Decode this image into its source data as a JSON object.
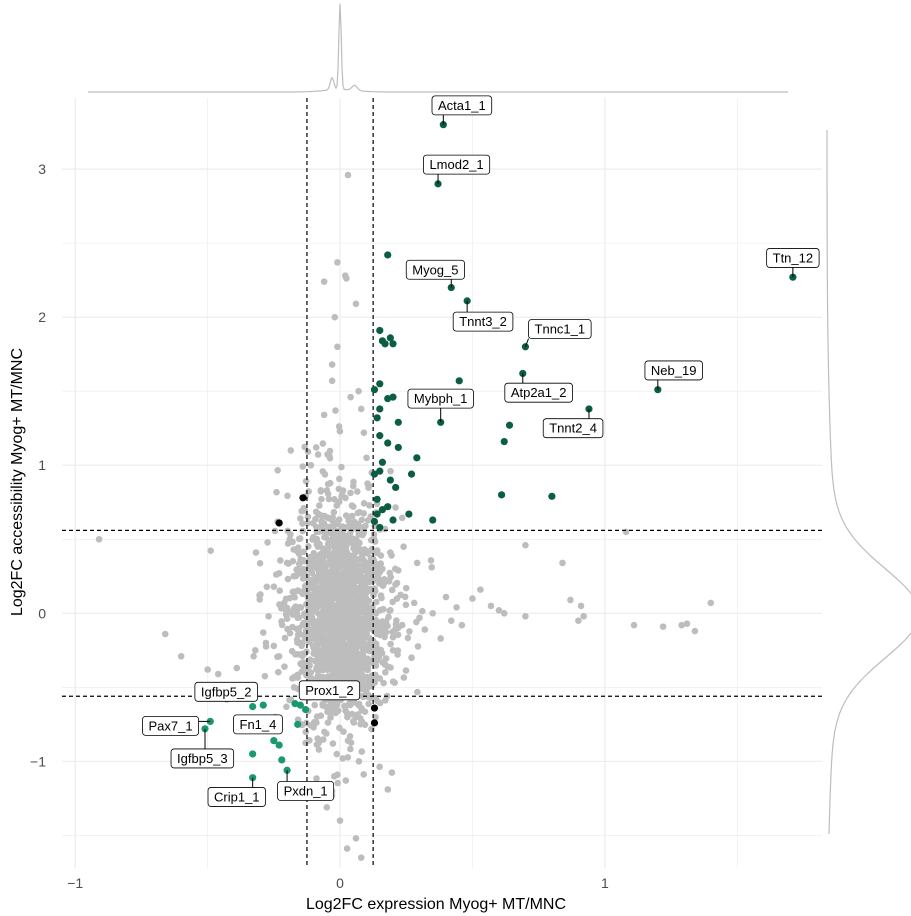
{
  "chart_data": {
    "type": "scatter",
    "title": "",
    "xlabel": "Log2FC expression Myog+ MT/MNC",
    "ylabel": "Log2FC accessibility Myog+ MT/MNC",
    "xlim": [
      -1.05,
      1.82
    ],
    "ylim": [
      -1.72,
      3.48
    ],
    "x_ticks": [
      {
        "value": -1,
        "label": "−1"
      },
      {
        "value": 0,
        "label": "0"
      },
      {
        "value": 1,
        "label": "1"
      }
    ],
    "y_ticks": [
      {
        "value": -1,
        "label": "−1"
      },
      {
        "value": 0,
        "label": "0"
      },
      {
        "value": 1,
        "label": "1"
      },
      {
        "value": 2,
        "label": "2"
      },
      {
        "value": 3,
        "label": "3"
      }
    ],
    "grid": true,
    "thresholds": {
      "x": [
        -0.125,
        0.125
      ],
      "y": [
        -0.56,
        0.56
      ]
    },
    "marginal_densities": {
      "top": "x density",
      "right": "y density"
    },
    "colors": {
      "background": "#bdbdbd",
      "up": "#0b5e42",
      "down": "#1a9870",
      "black": "#000000",
      "threshold_line": "#000000",
      "grid": "#ebebeb",
      "density": "#bdbdbd"
    },
    "background_points": [
      [
        -0.91,
        0.5
      ],
      [
        -0.66,
        -0.14
      ],
      [
        -0.6,
        -0.29
      ],
      [
        -0.5,
        -0.38
      ],
      [
        -0.46,
        -0.41
      ],
      [
        -0.39,
        -0.37
      ],
      [
        -0.32,
        -0.25
      ],
      [
        -0.28,
        -0.2
      ],
      [
        -0.29,
        -0.13
      ],
      [
        -0.27,
        -0.02
      ],
      [
        -0.25,
        0.18
      ],
      [
        -0.23,
        0.27
      ],
      [
        -0.2,
        0.34
      ],
      [
        -0.19,
        0.5
      ],
      [
        -0.15,
        0.64
      ],
      [
        -0.13,
        0.79
      ],
      [
        -0.11,
        1.0
      ],
      [
        -0.09,
        1.12
      ],
      [
        -0.06,
        1.34
      ],
      [
        -0.03,
        1.57
      ],
      [
        -0.01,
        1.8
      ],
      [
        -0.02,
        2.0
      ],
      [
        -0.06,
        2.24
      ],
      [
        -0.01,
        2.37
      ],
      [
        0.02,
        2.28
      ],
      [
        0.03,
        2.96
      ],
      [
        0.06,
        2.09
      ],
      [
        0.07,
        1.5
      ],
      [
        0.08,
        1.38
      ],
      [
        0.09,
        1.22
      ],
      [
        0.1,
        1.05
      ],
      [
        0.12,
        0.95
      ],
      [
        0.11,
        0.86
      ],
      [
        0.14,
        0.74
      ],
      [
        0.17,
        0.57
      ],
      [
        0.19,
        0.41
      ],
      [
        0.22,
        0.29
      ],
      [
        0.25,
        0.17
      ],
      [
        0.28,
        0.07
      ],
      [
        0.3,
        -0.03
      ],
      [
        0.32,
        -0.11
      ],
      [
        0.35,
        0.0
      ],
      [
        0.38,
        -0.17
      ],
      [
        0.4,
        0.11
      ],
      [
        0.42,
        -0.05
      ],
      [
        0.44,
        0.04
      ],
      [
        0.46,
        -0.08
      ],
      [
        0.5,
        0.1
      ],
      [
        0.53,
        0.16
      ],
      [
        0.57,
        0.05
      ],
      [
        0.6,
        0.02
      ],
      [
        0.62,
        0.0
      ],
      [
        0.7,
        0.46
      ],
      [
        0.7,
        -0.02
      ],
      [
        0.84,
        0.34
      ],
      [
        0.87,
        0.09
      ],
      [
        0.91,
        0.05
      ],
      [
        0.92,
        -0.02
      ],
      [
        0.9,
        -0.05
      ],
      [
        1.08,
        0.55
      ],
      [
        1.11,
        -0.08
      ],
      [
        1.22,
        -0.09
      ],
      [
        1.29,
        -0.08
      ],
      [
        1.31,
        -0.07
      ],
      [
        1.34,
        -0.12
      ],
      [
        1.4,
        0.07
      ],
      [
        0.2,
        -0.25
      ],
      [
        0.18,
        -0.36
      ],
      [
        0.15,
        -0.44
      ],
      [
        0.12,
        -0.48
      ],
      [
        0.1,
        -0.55
      ],
      [
        0.07,
        -0.62
      ],
      [
        0.05,
        -0.73
      ],
      [
        0.03,
        -0.86
      ],
      [
        0.01,
        -0.98
      ],
      [
        -0.01,
        -1.09
      ],
      [
        -0.03,
        -1.23
      ],
      [
        -0.05,
        -1.31
      ],
      [
        0.0,
        -1.4
      ],
      [
        0.06,
        -1.52
      ],
      [
        0.08,
        -1.65
      ],
      [
        -0.03,
        -1.2
      ],
      [
        -0.08,
        -0.92
      ],
      [
        -0.1,
        -0.77
      ],
      [
        -0.12,
        -0.66
      ],
      [
        -0.16,
        -0.51
      ],
      [
        -0.18,
        -0.44
      ],
      [
        -0.21,
        -0.36
      ],
      [
        -0.23,
        -0.29
      ],
      [
        -0.25,
        -0.22
      ],
      [
        -0.04,
        1.06
      ],
      [
        -0.05,
        0.83
      ],
      [
        -0.07,
        0.62
      ],
      [
        0.05,
        0.72
      ],
      [
        0.08,
        0.58
      ],
      [
        0.04,
        1.46
      ],
      [
        -0.03,
        1.68
      ],
      [
        0.16,
        0.3
      ],
      [
        0.24,
        0.45
      ],
      [
        0.27,
        -0.3
      ]
    ],
    "core_cloud": {
      "center": [
        0.0,
        0.0
      ],
      "x_sd": 0.08,
      "y_sd": 0.33
    },
    "highlight_points": [
      {
        "x": 0.39,
        "y": 3.3,
        "group": "up",
        "label": "Acta1_1"
      },
      {
        "x": 0.37,
        "y": 2.9,
        "group": "up",
        "label": "Lmod2_1"
      },
      {
        "x": 1.71,
        "y": 2.27,
        "group": "up",
        "label": "Ttn_12"
      },
      {
        "x": 0.42,
        "y": 2.2,
        "group": "up",
        "label": "Myog_5"
      },
      {
        "x": 0.48,
        "y": 2.11,
        "group": "up",
        "label": "Tnnt3_2"
      },
      {
        "x": 0.7,
        "y": 1.8,
        "group": "up",
        "label": "Tnnc1_1"
      },
      {
        "x": 1.2,
        "y": 1.51,
        "group": "up",
        "label": "Neb_19"
      },
      {
        "x": 0.69,
        "y": 1.62,
        "group": "up",
        "label": "Atp2a1_2"
      },
      {
        "x": 0.94,
        "y": 1.38,
        "group": "up",
        "label": "Tnnt2_4"
      },
      {
        "x": 0.38,
        "y": 1.29,
        "group": "up",
        "label": "Mybph_1"
      },
      {
        "x": 0.18,
        "y": 2.42,
        "group": "up"
      },
      {
        "x": 0.15,
        "y": 1.91,
        "group": "up"
      },
      {
        "x": 0.16,
        "y": 1.84,
        "group": "up"
      },
      {
        "x": 0.17,
        "y": 1.82,
        "group": "up"
      },
      {
        "x": 0.19,
        "y": 1.86,
        "group": "up"
      },
      {
        "x": 0.2,
        "y": 1.82,
        "group": "up"
      },
      {
        "x": 0.45,
        "y": 1.57,
        "group": "up"
      },
      {
        "x": 0.15,
        "y": 1.55,
        "group": "up"
      },
      {
        "x": 0.13,
        "y": 1.51,
        "group": "up"
      },
      {
        "x": 0.2,
        "y": 1.46,
        "group": "up"
      },
      {
        "x": 0.18,
        "y": 1.45,
        "group": "up"
      },
      {
        "x": 0.15,
        "y": 1.38,
        "group": "up"
      },
      {
        "x": 0.14,
        "y": 1.32,
        "group": "up"
      },
      {
        "x": 0.22,
        "y": 1.29,
        "group": "up"
      },
      {
        "x": 0.64,
        "y": 1.27,
        "group": "up"
      },
      {
        "x": 0.15,
        "y": 1.2,
        "group": "up"
      },
      {
        "x": 0.18,
        "y": 1.15,
        "group": "up"
      },
      {
        "x": 0.62,
        "y": 1.16,
        "group": "up"
      },
      {
        "x": 0.22,
        "y": 1.12,
        "group": "up"
      },
      {
        "x": 0.29,
        "y": 1.05,
        "group": "up"
      },
      {
        "x": 0.16,
        "y": 1.02,
        "group": "up"
      },
      {
        "x": 0.15,
        "y": 0.96,
        "group": "up"
      },
      {
        "x": 0.13,
        "y": 0.94,
        "group": "up"
      },
      {
        "x": 0.27,
        "y": 0.94,
        "group": "up"
      },
      {
        "x": 0.19,
        "y": 0.9,
        "group": "up"
      },
      {
        "x": 0.21,
        "y": 0.85,
        "group": "up"
      },
      {
        "x": 0.61,
        "y": 0.8,
        "group": "up"
      },
      {
        "x": 0.8,
        "y": 0.79,
        "group": "up"
      },
      {
        "x": 0.14,
        "y": 0.77,
        "group": "up"
      },
      {
        "x": 0.18,
        "y": 0.72,
        "group": "up"
      },
      {
        "x": 0.16,
        "y": 0.7,
        "group": "up"
      },
      {
        "x": 0.26,
        "y": 0.67,
        "group": "up"
      },
      {
        "x": 0.14,
        "y": 0.67,
        "group": "up"
      },
      {
        "x": 0.35,
        "y": 0.63,
        "group": "up"
      },
      {
        "x": 0.2,
        "y": 0.63,
        "group": "up"
      },
      {
        "x": 0.13,
        "y": 0.62,
        "group": "up"
      },
      {
        "x": 0.15,
        "y": 0.58,
        "group": "up"
      },
      {
        "x": -0.49,
        "y": -0.73,
        "group": "down",
        "label": "Pax7_1"
      },
      {
        "x": -0.36,
        "y": -0.75,
        "group": "down",
        "label": "Fn1_4"
      },
      {
        "x": -0.51,
        "y": -0.78,
        "group": "down",
        "label": "Igfbp5_3"
      },
      {
        "x": -0.33,
        "y": -0.63,
        "group": "down",
        "label": "Igfbp5_2"
      },
      {
        "x": -0.33,
        "y": -1.11,
        "group": "down",
        "label": "Crip1_1"
      },
      {
        "x": -0.2,
        "y": -1.06,
        "group": "down",
        "label": "Pxdn_1"
      },
      {
        "x": -0.15,
        "y": -0.62,
        "group": "down",
        "label": "Prox1_2"
      },
      {
        "x": -0.29,
        "y": -0.62,
        "group": "down"
      },
      {
        "x": -0.17,
        "y": -0.61,
        "group": "down"
      },
      {
        "x": -0.13,
        "y": -0.65,
        "group": "down"
      },
      {
        "x": -0.16,
        "y": -0.75,
        "group": "down"
      },
      {
        "x": -0.25,
        "y": -0.86,
        "group": "down"
      },
      {
        "x": -0.23,
        "y": -0.89,
        "group": "down"
      },
      {
        "x": -0.33,
        "y": -0.95,
        "group": "down"
      },
      {
        "x": -0.22,
        "y": -0.99,
        "group": "down"
      },
      {
        "x": -0.14,
        "y": 0.78,
        "group": "black"
      },
      {
        "x": -0.23,
        "y": 0.61,
        "group": "black"
      },
      {
        "x": 0.13,
        "y": -0.64,
        "group": "black"
      },
      {
        "x": 0.13,
        "y": -0.74,
        "group": "black"
      }
    ],
    "labels": [
      {
        "text": "Acta1_1",
        "x": 0.46,
        "y": 3.43
      },
      {
        "text": "Lmod2_1",
        "x": 0.44,
        "y": 3.03
      },
      {
        "text": "Ttn_12",
        "x": 1.71,
        "y": 2.4
      },
      {
        "text": "Myog_5",
        "x": 0.36,
        "y": 2.32
      },
      {
        "text": "Tnnt3_2",
        "x": 0.54,
        "y": 1.97
      },
      {
        "text": "Tnnc1_1",
        "x": 0.83,
        "y": 1.92
      },
      {
        "text": "Neb_19",
        "x": 1.26,
        "y": 1.64
      },
      {
        "text": "Atp2a1_2",
        "x": 0.75,
        "y": 1.49
      },
      {
        "text": "Tnnt2_4",
        "x": 0.88,
        "y": 1.25
      },
      {
        "text": "Mybph_1",
        "x": 0.38,
        "y": 1.45
      },
      {
        "text": "Pax7_1",
        "x": -0.64,
        "y": -0.76
      },
      {
        "text": "Fn1_4",
        "x": -0.31,
        "y": -0.75
      },
      {
        "text": "Igfbp5_3",
        "x": -0.52,
        "y": -0.98
      },
      {
        "text": "Igfbp5_2",
        "x": -0.43,
        "y": -0.53
      },
      {
        "text": "Crip1_1",
        "x": -0.39,
        "y": -1.24
      },
      {
        "text": "Pxdn_1",
        "x": -0.13,
        "y": -1.2
      },
      {
        "text": "Prox1_2",
        "x": -0.04,
        "y": -0.52
      }
    ]
  }
}
